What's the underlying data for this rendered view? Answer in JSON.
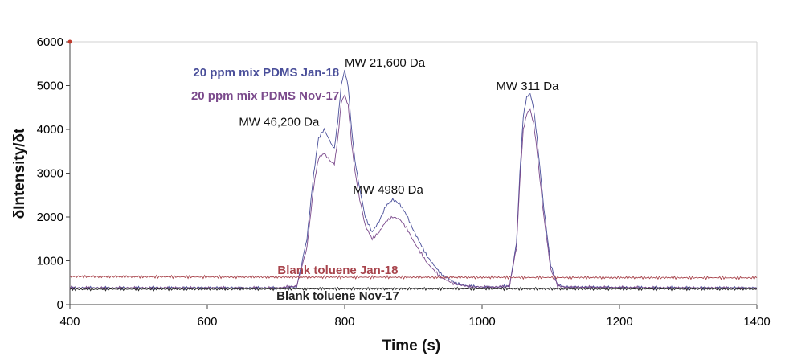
{
  "chart_data": {
    "type": "line",
    "title": "",
    "xlabel": "Time (s)",
    "ylabel": "δIntensity/δt",
    "xlim": [
      400,
      1400
    ],
    "ylim": [
      0,
      6000
    ],
    "xticks": [
      400,
      600,
      800,
      1000,
      1200,
      1400
    ],
    "yticks": [
      0,
      1000,
      2000,
      3000,
      4000,
      5000,
      6000
    ],
    "grid": false,
    "series": [
      {
        "name": "20 ppm mix PDMS Jan-18",
        "color": "#4a4f9a",
        "x": [
          400,
          700,
          730,
          745,
          755,
          762,
          770,
          778,
          785,
          790,
          795,
          800,
          805,
          810,
          815,
          820,
          830,
          840,
          850,
          860,
          870,
          880,
          890,
          900,
          920,
          940,
          960,
          980,
          1000,
          1020,
          1040,
          1050,
          1055,
          1060,
          1065,
          1070,
          1075,
          1080,
          1090,
          1100,
          1110,
          1120,
          1200,
          1300,
          1400
        ],
        "y": [
          380,
          380,
          400,
          1500,
          3000,
          3800,
          4000,
          3750,
          3550,
          4200,
          5000,
          5350,
          5000,
          4000,
          3300,
          2800,
          2000,
          1650,
          1900,
          2250,
          2400,
          2300,
          2050,
          1700,
          1100,
          700,
          500,
          420,
          400,
          400,
          420,
          1400,
          3000,
          4300,
          4750,
          4800,
          4500,
          3800,
          2200,
          900,
          450,
          400,
          390,
          380,
          380
        ]
      },
      {
        "name": "20 ppm mix PDMS Nov-17",
        "color": "#7b4a8c",
        "x": [
          400,
          700,
          730,
          745,
          755,
          762,
          770,
          778,
          785,
          790,
          795,
          800,
          805,
          810,
          815,
          820,
          830,
          840,
          850,
          860,
          870,
          880,
          890,
          900,
          920,
          940,
          960,
          980,
          1000,
          1020,
          1040,
          1050,
          1055,
          1060,
          1065,
          1070,
          1075,
          1080,
          1090,
          1100,
          1110,
          1120,
          1200,
          1300,
          1400
        ],
        "y": [
          380,
          380,
          420,
          1300,
          2700,
          3350,
          3450,
          3300,
          3200,
          3800,
          4600,
          4800,
          4550,
          3700,
          3050,
          2550,
          1800,
          1500,
          1650,
          1900,
          2000,
          1950,
          1750,
          1450,
          950,
          620,
          470,
          410,
          400,
          400,
          420,
          1300,
          2800,
          4000,
          4350,
          4450,
          4150,
          3500,
          2000,
          800,
          430,
          400,
          390,
          380,
          380
        ]
      },
      {
        "name": "Blank toluene Jan-18",
        "color": "#a8444c",
        "x": [
          400,
          600,
          800,
          1000,
          1200,
          1400
        ],
        "y": [
          640,
          630,
          625,
          620,
          615,
          610
        ]
      },
      {
        "name": "Blank toluene Nov-17",
        "color": "#222222",
        "x": [
          400,
          600,
          800,
          1000,
          1200,
          1400
        ],
        "y": [
          350,
          355,
          360,
          360,
          358,
          355
        ]
      }
    ],
    "legend_labels": [
      {
        "text": "20 ppm mix PDMS Jan-18",
        "color": "#4a4f9a"
      },
      {
        "text": "20 ppm mix PDMS Nov-17",
        "color": "#7b4a8c"
      },
      {
        "text": "Blank toluene Jan-18",
        "color": "#a8444c"
      },
      {
        "text": "Blank toluene Nov-17",
        "color": "#222222"
      }
    ],
    "annotations": [
      {
        "text": "MW 46,200 Da",
        "x": 763,
        "y": 4080,
        "anchor": "end"
      },
      {
        "text": "MW 21,600 Da",
        "x": 800,
        "y": 5430,
        "anchor": "start"
      },
      {
        "text": "MW 4980 Da",
        "x": 812,
        "y": 2530,
        "anchor": "start"
      },
      {
        "text": "MW 311 Da",
        "x": 1066,
        "y": 4900,
        "anchor": "middle"
      }
    ]
  }
}
